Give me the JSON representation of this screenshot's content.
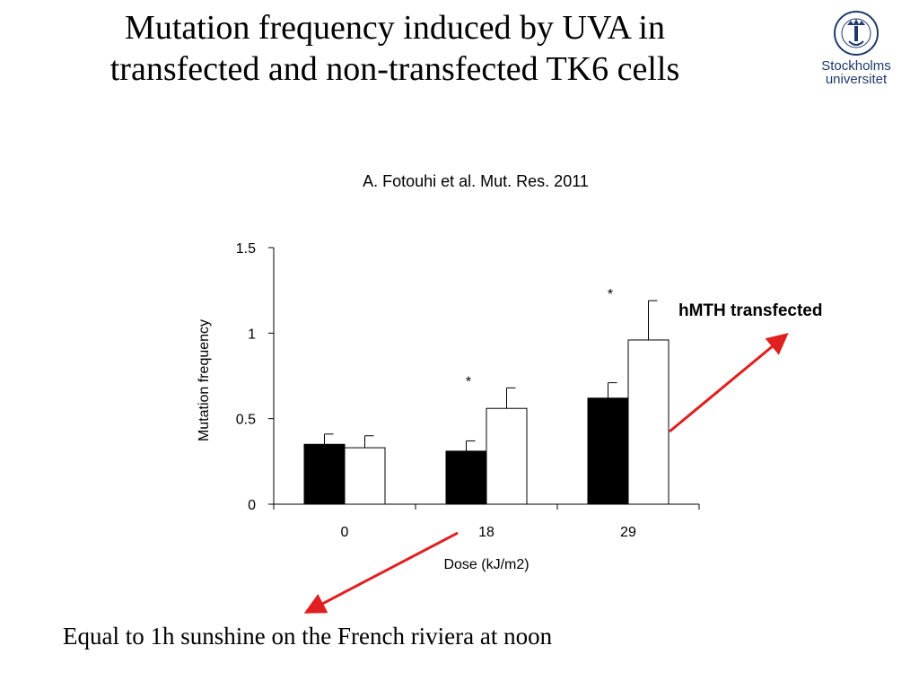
{
  "slide": {
    "title_line1": "Mutation frequency induced by UVA in",
    "title_line2": "transfected and non-transfected TK6 cells",
    "citation": "A. Fotouhi et al. Mut. Res. 2011",
    "logo_line1": "Stockholms",
    "logo_line2": "universitet",
    "logo_seal_text": "UNIVERSITET STOCKHOLMS",
    "annotation_label": "hMTH transfected",
    "footer": "Equal to 1h sunshine on the French riviera at noon",
    "colors": {
      "arrow": "#e02020",
      "logo": "#1f3a6b"
    }
  },
  "chart_data": {
    "type": "bar",
    "title": "",
    "xlabel": "Dose (kJ/m2)",
    "ylabel": "Mutation frequency",
    "ylim": [
      0,
      1.5
    ],
    "yticks": [
      0,
      0.5,
      1,
      1.5
    ],
    "ytick_labels": [
      "0",
      "0.5",
      "1",
      "1.5"
    ],
    "categories": [
      "0",
      "18",
      "29"
    ],
    "series": [
      {
        "name": "non-transfected",
        "color": "#000000",
        "values": [
          0.35,
          0.31,
          0.62
        ],
        "errors": [
          0.06,
          0.06,
          0.09
        ]
      },
      {
        "name": "hMTH transfected",
        "color": "#ffffff",
        "values": [
          0.33,
          0.56,
          0.96
        ],
        "errors": [
          0.07,
          0.12,
          0.23
        ]
      }
    ],
    "significance": [
      {
        "category": "18",
        "label": "*"
      },
      {
        "category": "29",
        "label": "*"
      }
    ]
  }
}
